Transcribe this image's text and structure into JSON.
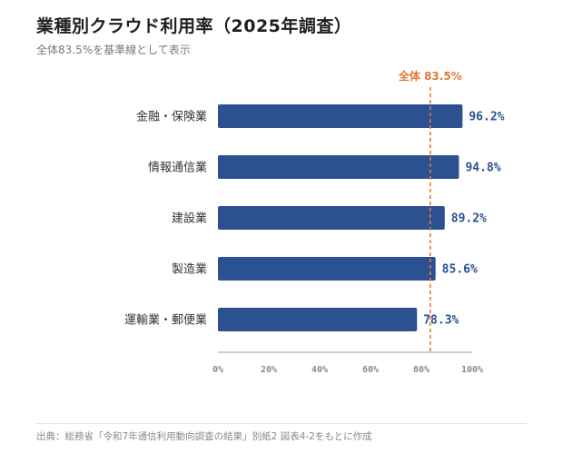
{
  "header": {
    "title": "業種別クラウド利用率（2025年調査）",
    "subtitle": "全体83.5%を基準線として表示"
  },
  "chart_data": {
    "type": "bar",
    "orientation": "horizontal",
    "categories": [
      "金融・保険業",
      "情報通信業",
      "建設業",
      "製造業",
      "運輸業・郵便業"
    ],
    "values": [
      96.2,
      94.8,
      89.2,
      85.6,
      78.3
    ],
    "value_labels": [
      "96.2%",
      "94.8%",
      "89.2%",
      "85.6%",
      "78.3%"
    ],
    "xlim": [
      0,
      100
    ],
    "xticks": [
      0,
      20,
      40,
      60,
      80,
      100
    ],
    "xtick_labels": [
      "0%",
      "20%",
      "40%",
      "60%",
      "80%",
      "100%"
    ],
    "reference_line": {
      "value": 83.5,
      "label": "全体 83.5%"
    },
    "grid": false,
    "colors": {
      "bar": "#2c5191",
      "value_label": "#2c5191",
      "reference": "#e07b39",
      "axis": "#bfbfbf",
      "tick_label": "#8a8a8a"
    }
  },
  "footer": {
    "source": "出典：総務省「令和7年通信利用動向調査の結果」別紙2 図表4-2をもとに作成"
  }
}
